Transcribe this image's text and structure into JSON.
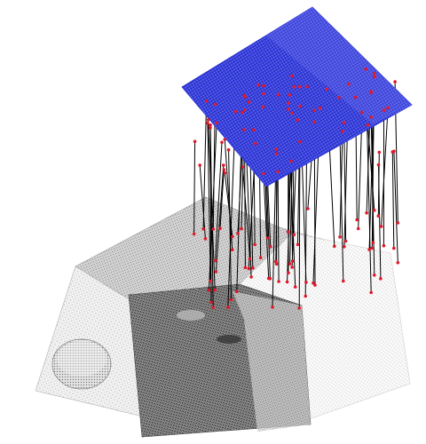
{
  "figure": {
    "kind": "3d-point-cloud-correspondence-visualization",
    "background": "#ffffff"
  },
  "colors": {
    "scan_plane": "#2a33d6",
    "scan_plane_light": "#6f75ee",
    "keypoint": "#e0182a",
    "correspondence_line": "#000000",
    "mesh_light": "#d8d8d8",
    "mesh_mid": "#9a9a9a",
    "mesh_dark": "#3b3b3b"
  },
  "elements": {
    "source_cloud": "blue-planar-scan",
    "target_cloud": "gray-stepped-surface-scan",
    "matches": "correspondence-lines"
  }
}
